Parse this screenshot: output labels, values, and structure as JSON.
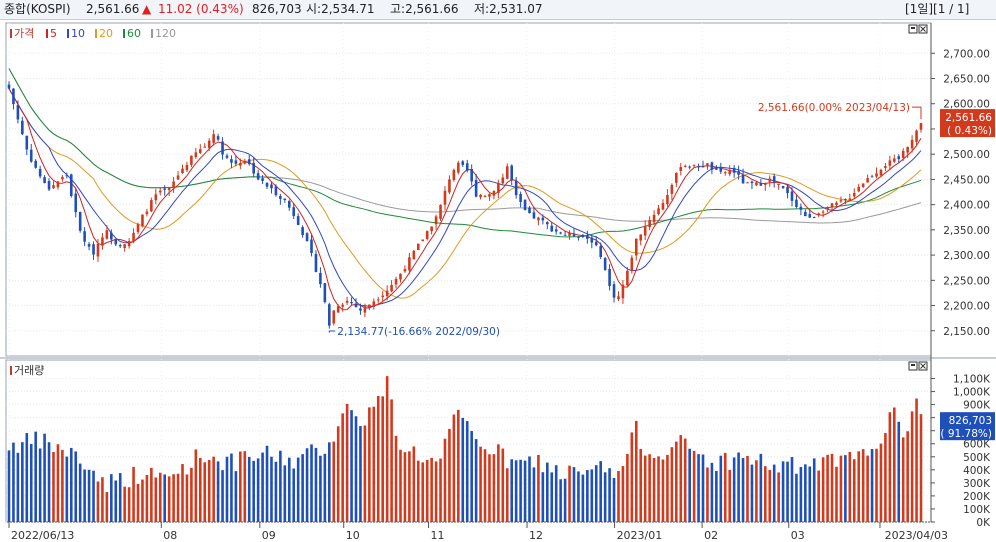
{
  "header": {
    "name": "종합(KOSPI)",
    "price": "2,561.66",
    "change_arrow": "▲",
    "change": "11.02 (0.43%)",
    "volume": "826,703",
    "open": "시:2,534.71",
    "high": "고:2,561.66",
    "low": "저:2,531.07",
    "period": "[1일][1 / 1]"
  },
  "colors": {
    "up": "#d23a1e",
    "down": "#1f4fb8",
    "ma5": "#d22222",
    "ma10": "#3346c8",
    "ma20": "#e09a20",
    "ma60": "#1f8a3a",
    "ma120": "#9a9a9a"
  },
  "chart_data": [
    {
      "type": "candlestick",
      "panel": "price",
      "legend": [
        {
          "label": "가격",
          "color": "#c0392b"
        },
        {
          "label": "5",
          "color": "#d22222"
        },
        {
          "label": "10",
          "color": "#3346c8"
        },
        {
          "label": "20",
          "color": "#e09a20"
        },
        {
          "label": "60",
          "color": "#1f8a3a"
        },
        {
          "label": "120",
          "color": "#9a9a9a"
        }
      ],
      "y_ticks": [
        "2,700.00",
        "2,650.00",
        "2,600.00",
        "2,550.00",
        "2,500.00",
        "2,450.00",
        "2,400.00",
        "2,350.00",
        "2,300.00",
        "2,250.00",
        "2,200.00",
        "2,150.00"
      ],
      "ylim": [
        2100,
        2760
      ],
      "x_ticks": [
        "2022/06/13",
        "08",
        "09",
        "10",
        "11",
        "12",
        "2023/01",
        "02",
        "03",
        "2023/04/03"
      ],
      "last_label": [
        "2,561.66",
        "( 0.43%)"
      ],
      "annotations": [
        {
          "text": "2,561.66(0.00% 2023/04/13)",
          "value": 2561.66
        },
        {
          "text": "2,134.77(-16.66% 2022/09/30)",
          "value": 2134.77
        }
      ],
      "close_path": [
        [
          0,
          2630
        ],
        [
          6,
          2500
        ],
        [
          12,
          2430
        ],
        [
          18,
          2460
        ],
        [
          22,
          2350
        ],
        [
          26,
          2300
        ],
        [
          30,
          2350
        ],
        [
          34,
          2320
        ],
        [
          38,
          2330
        ],
        [
          42,
          2380
        ],
        [
          46,
          2420
        ],
        [
          50,
          2430
        ],
        [
          54,
          2470
        ],
        [
          58,
          2500
        ],
        [
          62,
          2520
        ],
        [
          64,
          2545
        ],
        [
          67,
          2500
        ],
        [
          70,
          2480
        ],
        [
          74,
          2490
        ],
        [
          78,
          2450
        ],
        [
          82,
          2430
        ],
        [
          86,
          2410
        ],
        [
          90,
          2370
        ],
        [
          94,
          2310
        ],
        [
          98,
          2230
        ],
        [
          100,
          2160
        ],
        [
          102,
          2200
        ],
        [
          106,
          2210
        ],
        [
          110,
          2190
        ],
        [
          114,
          2210
        ],
        [
          118,
          2230
        ],
        [
          122,
          2260
        ],
        [
          126,
          2300
        ],
        [
          130,
          2340
        ],
        [
          134,
          2380
        ],
        [
          138,
          2460
        ],
        [
          140,
          2480
        ],
        [
          143,
          2470
        ],
        [
          146,
          2420
        ],
        [
          150,
          2420
        ],
        [
          154,
          2450
        ],
        [
          156,
          2480
        ],
        [
          158,
          2420
        ],
        [
          162,
          2380
        ],
        [
          166,
          2370
        ],
        [
          170,
          2350
        ],
        [
          174,
          2340
        ],
        [
          178,
          2340
        ],
        [
          182,
          2330
        ],
        [
          185,
          2300
        ],
        [
          188,
          2230
        ],
        [
          190,
          2210
        ],
        [
          193,
          2260
        ],
        [
          196,
          2330
        ],
        [
          200,
          2370
        ],
        [
          204,
          2400
        ],
        [
          208,
          2450
        ],
        [
          210,
          2480
        ],
        [
          214,
          2475
        ],
        [
          218,
          2480
        ],
        [
          222,
          2460
        ],
        [
          226,
          2470
        ],
        [
          230,
          2440
        ],
        [
          234,
          2440
        ],
        [
          238,
          2450
        ],
        [
          242,
          2430
        ],
        [
          246,
          2400
        ],
        [
          250,
          2370
        ],
        [
          254,
          2390
        ],
        [
          258,
          2400
        ],
        [
          262,
          2410
        ],
        [
          266,
          2440
        ],
        [
          270,
          2460
        ],
        [
          274,
          2480
        ],
        [
          278,
          2490
        ],
        [
          281,
          2520
        ],
        [
          283,
          2540
        ],
        [
          285,
          2561.66
        ]
      ],
      "candle_count": 206
    },
    {
      "type": "bar",
      "panel": "volume",
      "legend": [
        {
          "label": "거래량",
          "color": "#c0392b"
        }
      ],
      "y_ticks": [
        "1,100K",
        "1,000K",
        "900K",
        "800K",
        "700K",
        "600K",
        "500K",
        "400K",
        "300K",
        "200K",
        "100K",
        "0K"
      ],
      "ylim": [
        0,
        1150
      ],
      "last_label": [
        "826,703",
        "( 91.78%)"
      ],
      "volume_path": [
        [
          0,
          590
        ],
        [
          10,
          620
        ],
        [
          20,
          520
        ],
        [
          30,
          300
        ],
        [
          40,
          360
        ],
        [
          50,
          340
        ],
        [
          60,
          520
        ],
        [
          70,
          450
        ],
        [
          80,
          520
        ],
        [
          90,
          470
        ],
        [
          100,
          600
        ],
        [
          105,
          880
        ],
        [
          110,
          780
        ],
        [
          115,
          900
        ],
        [
          118,
          1080
        ],
        [
          122,
          600
        ],
        [
          128,
          520
        ],
        [
          134,
          430
        ],
        [
          140,
          820
        ],
        [
          146,
          640
        ],
        [
          152,
          540
        ],
        [
          158,
          430
        ],
        [
          165,
          470
        ],
        [
          172,
          380
        ],
        [
          180,
          360
        ],
        [
          186,
          420
        ],
        [
          190,
          330
        ],
        [
          196,
          700
        ],
        [
          200,
          520
        ],
        [
          210,
          600
        ],
        [
          220,
          450
        ],
        [
          230,
          500
        ],
        [
          240,
          420
        ],
        [
          250,
          430
        ],
        [
          258,
          460
        ],
        [
          266,
          480
        ],
        [
          272,
          650
        ],
        [
          276,
          820
        ],
        [
          280,
          700
        ],
        [
          283,
          900
        ],
        [
          285,
          826.7
        ]
      ]
    }
  ]
}
